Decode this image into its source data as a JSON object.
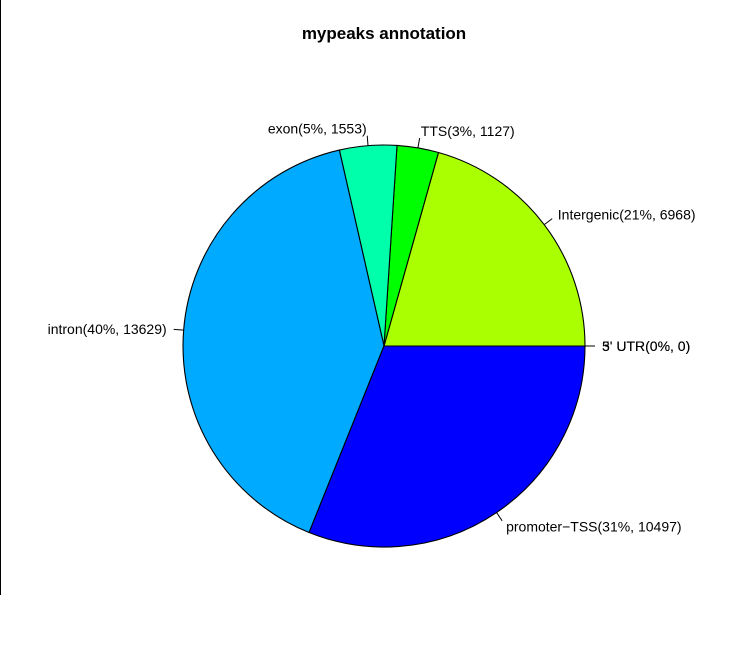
{
  "chart_data": {
    "type": "pie",
    "title": "mypeaks annotation",
    "slices": [
      {
        "category": "5' UTR",
        "percent_label": "0%",
        "count": 0,
        "label": "5' UTR(0%, 0)",
        "color": "#FF0000"
      },
      {
        "category": "3' UTR",
        "percent_label": "0%",
        "count": 0,
        "label": "3' UTR(0%, 0)",
        "color": "#FF9900"
      },
      {
        "category": "Intergenic",
        "percent_label": "21%",
        "count": 6968,
        "label": "Intergenic(21%, 6968)",
        "color": "#AAFF00"
      },
      {
        "category": "TTS",
        "percent_label": "3%",
        "count": 1127,
        "label": "TTS(3%, 1127)",
        "color": "#00FF00"
      },
      {
        "category": "exon",
        "percent_label": "5%",
        "count": 1553,
        "label": "exon(5%, 1553)",
        "color": "#00FFAA"
      },
      {
        "category": "intron",
        "percent_label": "40%",
        "count": 13629,
        "label": "intron(40%, 13629)",
        "color": "#00AAFF"
      },
      {
        "category": "promoter-TSS",
        "percent_label": "31%",
        "count": 10497,
        "label": "promoter−TSS(31%, 10497)",
        "color": "#0000FF"
      }
    ],
    "start_angle_deg": 0,
    "direction": "counterclockwise",
    "grid": false,
    "legend": "none"
  }
}
